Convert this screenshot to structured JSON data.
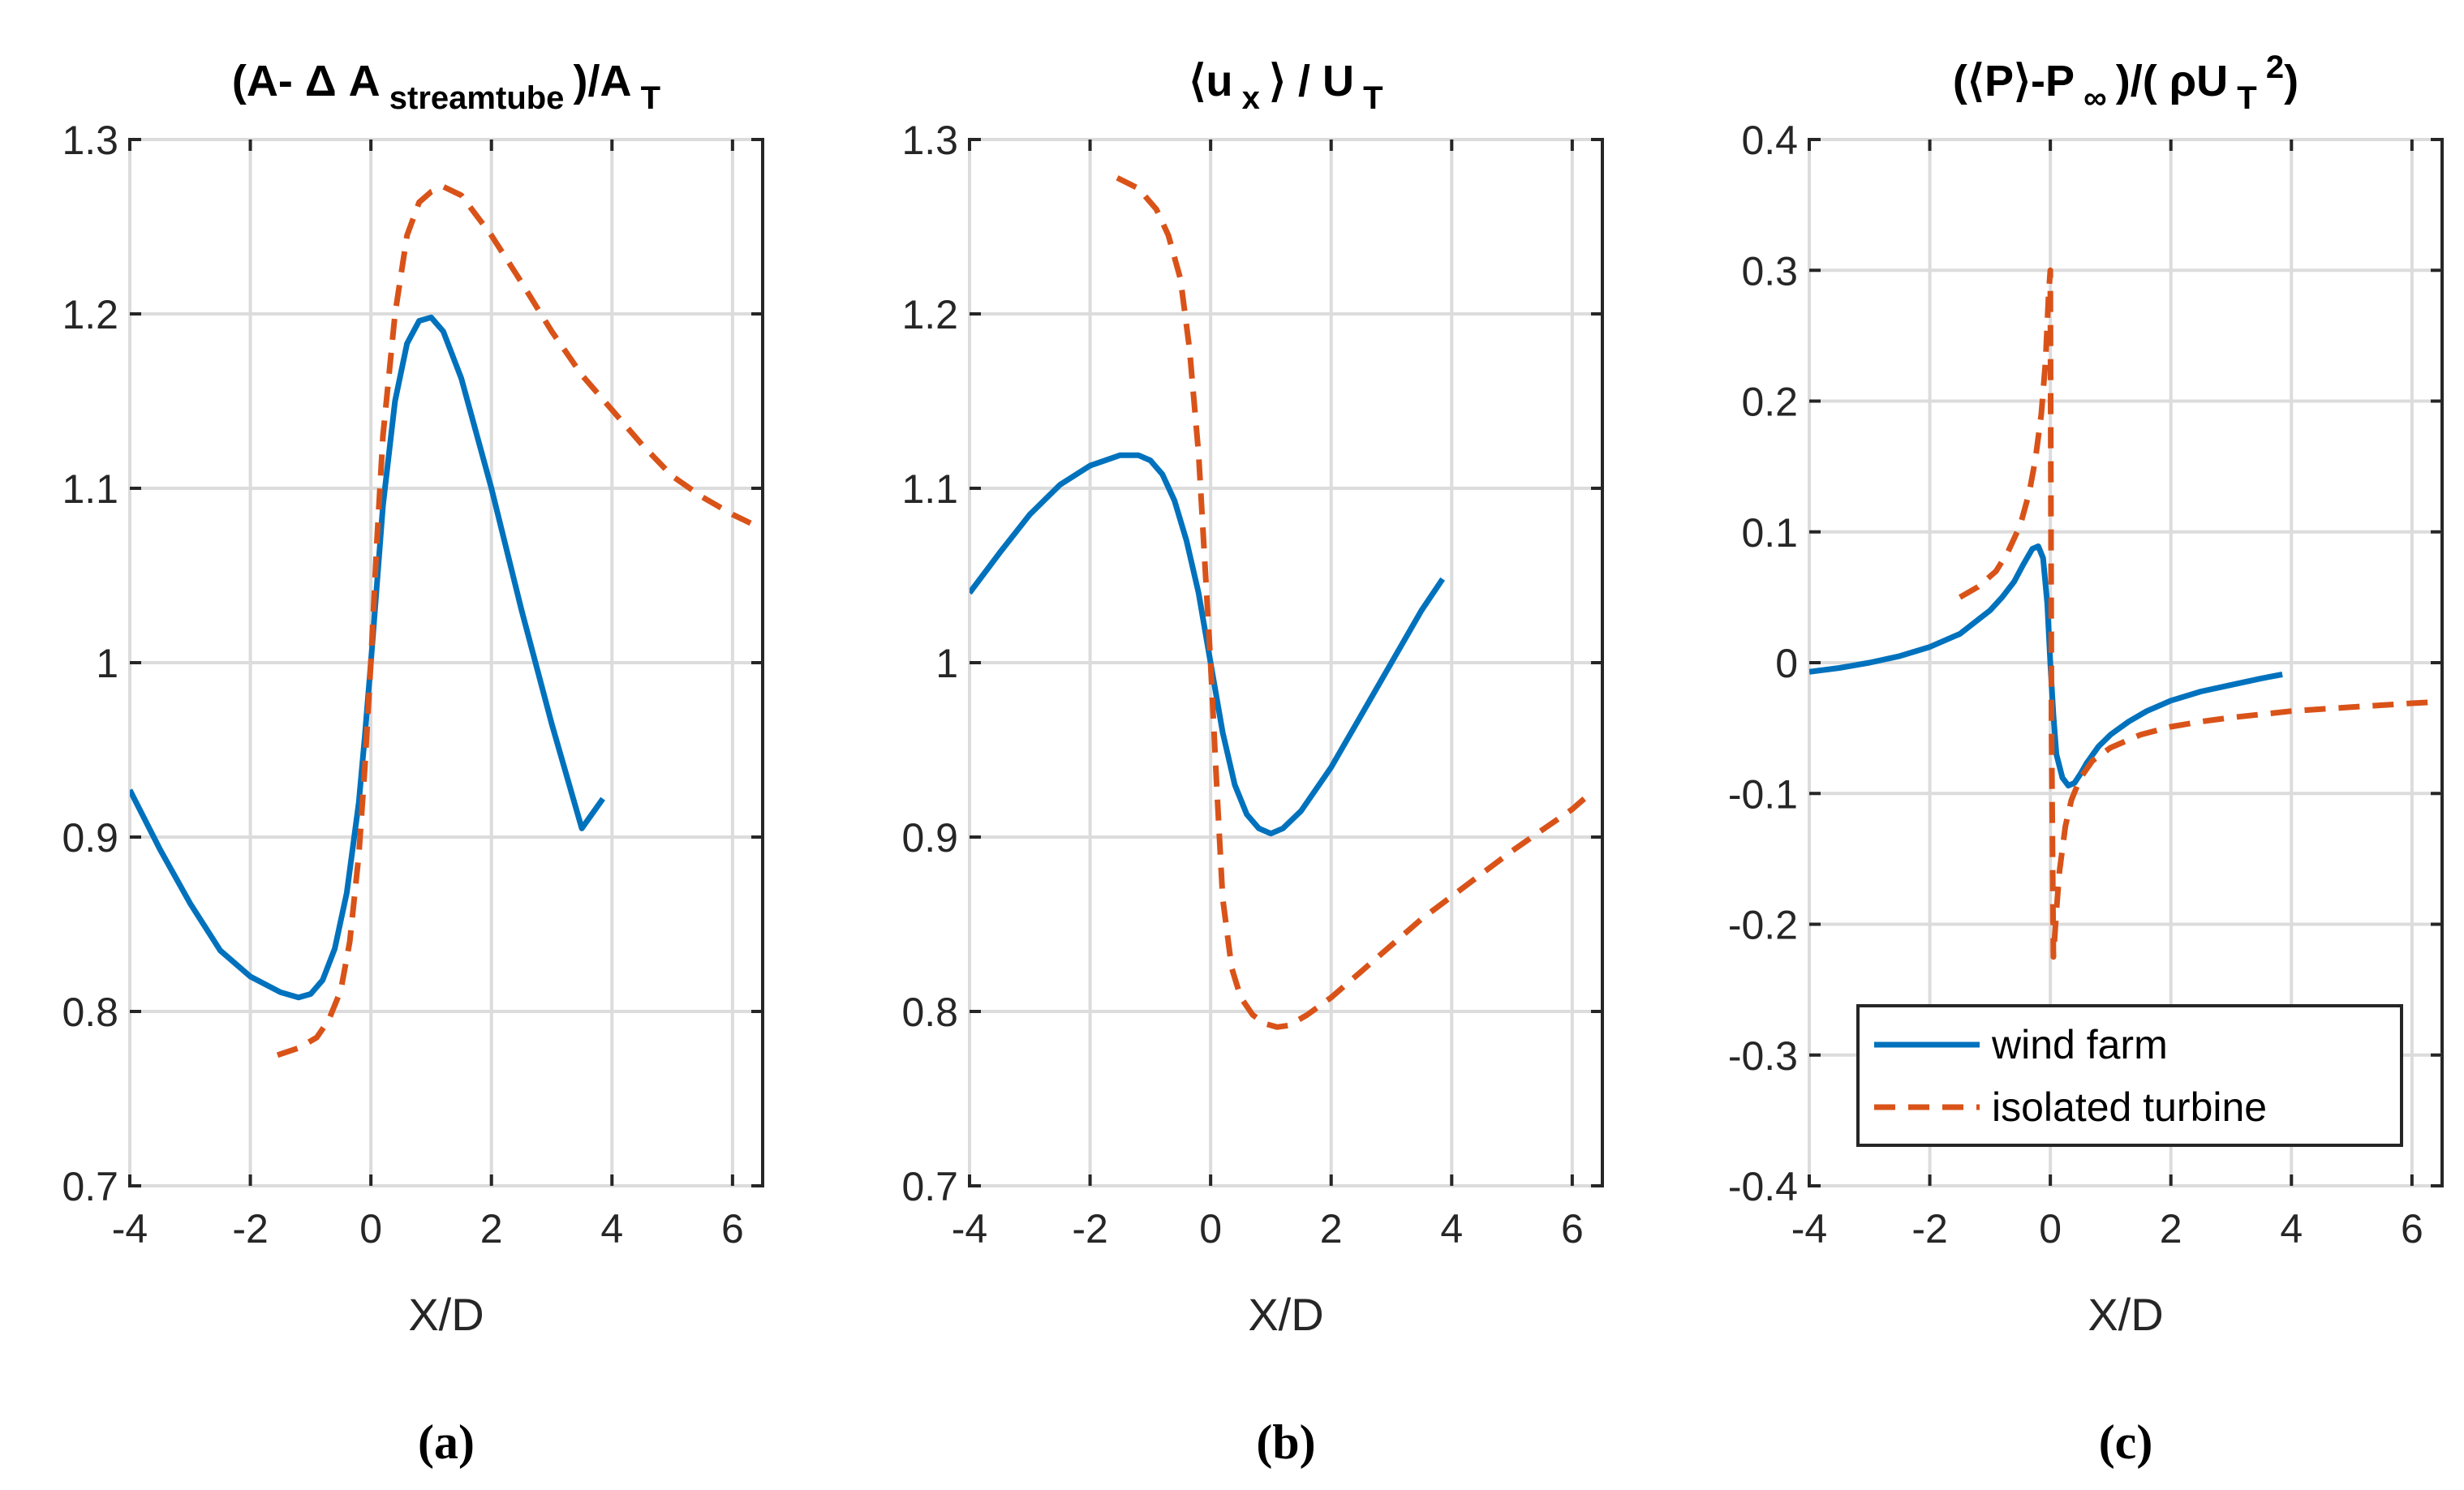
{
  "colors": {
    "wind_farm": "#0072BD",
    "isolated_turbine": "#D95319"
  },
  "legend": [
    {
      "label": "wind farm",
      "series": "wind_farm"
    },
    {
      "label": "isolated turbine",
      "series": "isolated_turbine"
    }
  ],
  "chart_data": [
    {
      "type": "line",
      "panel_caption": "(a)",
      "title": {
        "pre": "(A- Δ A",
        "sub1": "streamtube",
        "mid": ")/A",
        "sub2": "T",
        "post": ""
      },
      "xlabel": "X/D",
      "ylabel": "",
      "xlim": [
        -4,
        6.5
      ],
      "ylim": [
        0.7,
        1.3
      ],
      "xticks": [
        -4,
        -2,
        0,
        2,
        4,
        6
      ],
      "yticks": [
        0.7,
        0.8,
        0.9,
        1,
        1.1,
        1.2,
        1.3
      ],
      "ytick_labels": [
        "0.7",
        "0.8",
        "0.9",
        "1",
        "1.1",
        "1.2",
        "1.3"
      ],
      "grid": true,
      "legend": false,
      "series": [
        {
          "name": "wind farm",
          "key": "wind_farm",
          "style": "solid",
          "x": [
            -4.0,
            -3.5,
            -3.0,
            -2.5,
            -2.0,
            -1.5,
            -1.2,
            -1.0,
            -0.8,
            -0.6,
            -0.4,
            -0.2,
            -0.1,
            0.0,
            0.1,
            0.2,
            0.4,
            0.6,
            0.8,
            1.0,
            1.2,
            1.5,
            2.0,
            2.5,
            3.0,
            3.5,
            3.85
          ],
          "y": [
            0.927,
            0.893,
            0.862,
            0.835,
            0.82,
            0.811,
            0.808,
            0.81,
            0.818,
            0.836,
            0.868,
            0.92,
            0.958,
            1.0,
            1.045,
            1.09,
            1.15,
            1.183,
            1.196,
            1.198,
            1.19,
            1.163,
            1.1,
            1.03,
            0.965,
            0.905,
            0.922
          ]
        },
        {
          "name": "isolated turbine",
          "key": "isolated_turbine",
          "style": "dashed",
          "x": [
            -1.55,
            -1.2,
            -0.9,
            -0.7,
            -0.5,
            -0.35,
            -0.2,
            -0.1,
            0.0,
            0.1,
            0.2,
            0.4,
            0.6,
            0.8,
            1.0,
            1.2,
            1.5,
            2.0,
            2.5,
            3.0,
            3.5,
            4.0,
            4.5,
            5.0,
            5.5,
            6.0,
            6.3
          ],
          "y": [
            0.775,
            0.779,
            0.785,
            0.795,
            0.812,
            0.84,
            0.89,
            0.94,
            1.0,
            1.07,
            1.13,
            1.2,
            1.245,
            1.264,
            1.27,
            1.273,
            1.268,
            1.245,
            1.218,
            1.19,
            1.165,
            1.145,
            1.125,
            1.107,
            1.095,
            1.085,
            1.08
          ]
        }
      ]
    },
    {
      "type": "line",
      "panel_caption": "(b)",
      "title": {
        "pre": "⟨u",
        "sub1": "x",
        "mid": "⟩ / U",
        "sub2": "T",
        "post": ""
      },
      "xlabel": "X/D",
      "ylabel": "",
      "xlim": [
        -4,
        6.5
      ],
      "ylim": [
        0.7,
        1.3
      ],
      "xticks": [
        -4,
        -2,
        0,
        2,
        4,
        6
      ],
      "yticks": [
        0.7,
        0.8,
        0.9,
        1,
        1.1,
        1.2,
        1.3
      ],
      "ytick_labels": [
        "0.7",
        "0.8",
        "0.9",
        "1",
        "1.1",
        "1.2",
        "1.3"
      ],
      "grid": true,
      "legend": false,
      "series": [
        {
          "name": "wind farm",
          "key": "wind_farm",
          "style": "solid",
          "x": [
            -4.0,
            -3.5,
            -3.0,
            -2.5,
            -2.0,
            -1.5,
            -1.2,
            -1.0,
            -0.8,
            -0.6,
            -0.4,
            -0.2,
            0.0,
            0.2,
            0.4,
            0.6,
            0.8,
            1.0,
            1.2,
            1.5,
            2.0,
            2.5,
            3.0,
            3.5,
            3.85
          ],
          "y": [
            1.04,
            1.063,
            1.085,
            1.102,
            1.113,
            1.119,
            1.119,
            1.116,
            1.108,
            1.093,
            1.07,
            1.04,
            1.0,
            0.96,
            0.93,
            0.913,
            0.905,
            0.902,
            0.905,
            0.915,
            0.94,
            0.97,
            1.0,
            1.03,
            1.048
          ]
        },
        {
          "name": "isolated turbine",
          "key": "isolated_turbine",
          "style": "dashed",
          "x": [
            -1.55,
            -1.2,
            -0.9,
            -0.7,
            -0.5,
            -0.35,
            -0.2,
            -0.1,
            0.0,
            0.1,
            0.2,
            0.35,
            0.5,
            0.7,
            0.9,
            1.1,
            1.3,
            1.6,
            2.0,
            2.5,
            3.0,
            3.5,
            4.0,
            4.5,
            5.0,
            5.5,
            6.0,
            6.2
          ],
          "y": [
            1.278,
            1.272,
            1.26,
            1.245,
            1.22,
            1.18,
            1.12,
            1.06,
            1.0,
            0.93,
            0.865,
            0.825,
            0.808,
            0.798,
            0.793,
            0.791,
            0.792,
            0.798,
            0.808,
            0.823,
            0.838,
            0.853,
            0.866,
            0.879,
            0.892,
            0.904,
            0.916,
            0.922
          ]
        }
      ]
    },
    {
      "type": "line",
      "panel_caption": "(c)",
      "title": {
        "pre": "(⟨P⟩-P",
        "sub1": "∞",
        "mid": ")/( ρU",
        "sub2": "T",
        "sup": "2",
        "post": ")"
      },
      "xlabel": "X/D",
      "ylabel": "",
      "xlim": [
        -4,
        6.5
      ],
      "ylim": [
        -0.4,
        0.4
      ],
      "xticks": [
        -4,
        -2,
        0,
        2,
        4,
        6
      ],
      "yticks": [
        -0.4,
        -0.3,
        -0.2,
        -0.1,
        0,
        0.1,
        0.2,
        0.3,
        0.4
      ],
      "ytick_labels": [
        "-0.4",
        "-0.3",
        "-0.2",
        "-0.1",
        "0",
        "0.1",
        "0.2",
        "0.3",
        "0.4"
      ],
      "grid": true,
      "legend": true,
      "legend_position": "bottom-right",
      "series": [
        {
          "name": "wind farm",
          "key": "wind_farm",
          "style": "solid",
          "x": [
            -4.0,
            -3.5,
            -3.0,
            -2.5,
            -2.0,
            -1.5,
            -1.0,
            -0.8,
            -0.6,
            -0.45,
            -0.3,
            -0.2,
            -0.12,
            -0.05,
            0.0,
            0.05,
            0.1,
            0.2,
            0.3,
            0.4,
            0.5,
            0.6,
            0.8,
            1.0,
            1.3,
            1.6,
            2.0,
            2.5,
            3.0,
            3.5,
            3.85
          ],
          "y": [
            -0.007,
            -0.004,
            0.0,
            0.005,
            0.012,
            0.022,
            0.04,
            0.05,
            0.062,
            0.075,
            0.087,
            0.089,
            0.08,
            0.045,
            0.0,
            -0.04,
            -0.07,
            -0.088,
            -0.094,
            -0.092,
            -0.085,
            -0.077,
            -0.064,
            -0.055,
            -0.045,
            -0.037,
            -0.029,
            -0.022,
            -0.017,
            -0.012,
            -0.009
          ]
        },
        {
          "name": "isolated turbine",
          "key": "isolated_turbine",
          "style": "dashed",
          "x": [
            -1.5,
            -1.2,
            -0.9,
            -0.7,
            -0.5,
            -0.35,
            -0.25,
            -0.15,
            -0.08,
            -0.03,
            0.0,
            0.02,
            0.05,
            0.1,
            0.15,
            0.25,
            0.35,
            0.5,
            0.7,
            1.0,
            1.5,
            2.0,
            2.5,
            3.0,
            4.0,
            5.0,
            6.0,
            6.4
          ],
          "y": [
            0.05,
            0.058,
            0.07,
            0.085,
            0.105,
            0.13,
            0.155,
            0.19,
            0.23,
            0.28,
            0.3,
            -0.05,
            -0.225,
            -0.19,
            -0.16,
            -0.125,
            -0.105,
            -0.088,
            -0.075,
            -0.065,
            -0.055,
            -0.049,
            -0.045,
            -0.042,
            -0.037,
            -0.034,
            -0.031,
            -0.03
          ]
        }
      ]
    }
  ]
}
